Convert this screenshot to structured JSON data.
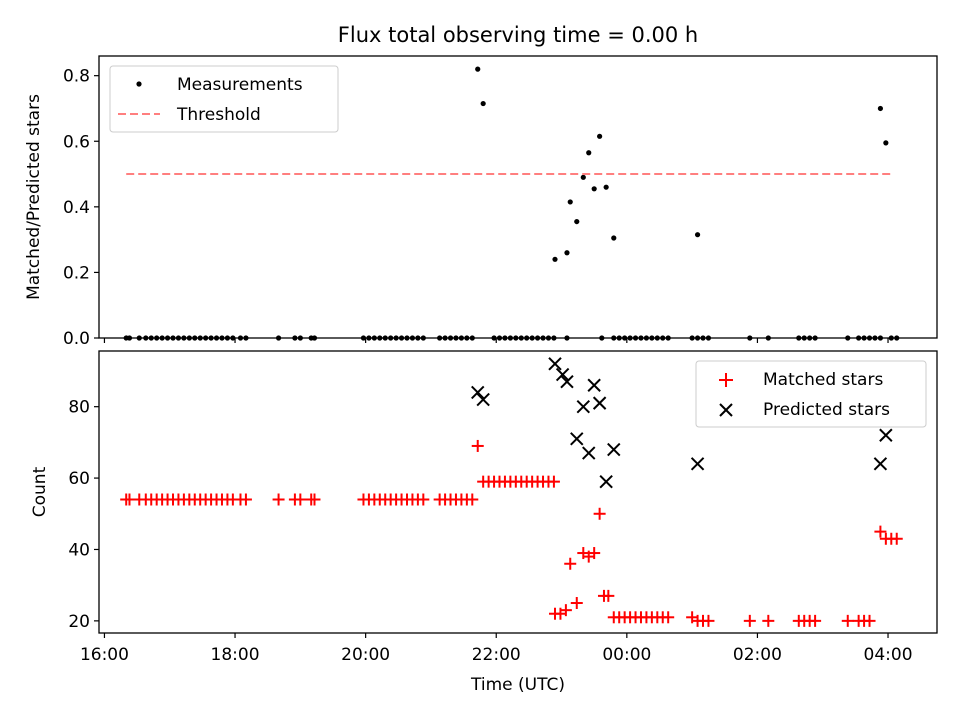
{
  "title": "Flux total observing time = 0.00 h",
  "chart_data": [
    {
      "type": "scatter",
      "ylabel": "Matched/Predicted stars",
      "xlabel": "",
      "xlim": [
        "15:55",
        "28:45"
      ],
      "ylim": [
        0,
        0.86
      ],
      "yticks": [
        0.0,
        0.2,
        0.4,
        0.6,
        0.8
      ],
      "ytick_labels": [
        "0.0",
        "0.2",
        "0.4",
        "0.6",
        "0.8"
      ],
      "legend": {
        "position": "top-left",
        "items": [
          "Measurements",
          "Threshold"
        ]
      },
      "series": [
        {
          "name": "Measurements",
          "color": "#000000",
          "marker": "dot",
          "points": [
            [
              "16:20",
              0
            ],
            [
              "16:23",
              0
            ],
            [
              "16:32",
              0
            ],
            [
              "16:38",
              0
            ],
            [
              "16:43",
              0
            ],
            [
              "16:48",
              0
            ],
            [
              "16:53",
              0
            ],
            [
              "16:58",
              0
            ],
            [
              "17:03",
              0
            ],
            [
              "17:08",
              0
            ],
            [
              "17:13",
              0
            ],
            [
              "17:18",
              0
            ],
            [
              "17:23",
              0
            ],
            [
              "17:28",
              0
            ],
            [
              "17:33",
              0
            ],
            [
              "17:38",
              0
            ],
            [
              "17:43",
              0
            ],
            [
              "17:48",
              0
            ],
            [
              "17:53",
              0
            ],
            [
              "17:58",
              0
            ],
            [
              "18:05",
              0
            ],
            [
              "18:10",
              0
            ],
            [
              "18:40",
              0
            ],
            [
              "18:55",
              0
            ],
            [
              "19:00",
              0
            ],
            [
              "19:10",
              0
            ],
            [
              "19:13",
              0
            ],
            [
              "19:58",
              0
            ],
            [
              "20:03",
              0
            ],
            [
              "20:08",
              0
            ],
            [
              "20:13",
              0
            ],
            [
              "20:18",
              0
            ],
            [
              "20:23",
              0
            ],
            [
              "20:28",
              0
            ],
            [
              "20:33",
              0
            ],
            [
              "20:38",
              0
            ],
            [
              "20:43",
              0
            ],
            [
              "20:48",
              0
            ],
            [
              "20:53",
              0
            ],
            [
              "21:08",
              0
            ],
            [
              "21:13",
              0
            ],
            [
              "21:18",
              0
            ],
            [
              "21:23",
              0
            ],
            [
              "21:28",
              0
            ],
            [
              "21:33",
              0
            ],
            [
              "21:38",
              0
            ],
            [
              "21:43",
              0.82
            ],
            [
              "21:48",
              0.715
            ],
            [
              "21:58",
              0
            ],
            [
              "22:03",
              0
            ],
            [
              "22:08",
              0
            ],
            [
              "22:13",
              0
            ],
            [
              "22:18",
              0
            ],
            [
              "22:23",
              0
            ],
            [
              "22:28",
              0
            ],
            [
              "22:33",
              0
            ],
            [
              "22:38",
              0
            ],
            [
              "22:43",
              0
            ],
            [
              "22:48",
              0
            ],
            [
              "22:53",
              0
            ],
            [
              "23:05",
              0
            ],
            [
              "22:54",
              0.24
            ],
            [
              "23:05",
              0.26
            ],
            [
              "23:08",
              0.415
            ],
            [
              "23:14",
              0.355
            ],
            [
              "23:20",
              0.49
            ],
            [
              "23:25",
              0.565
            ],
            [
              "23:30",
              0.455
            ],
            [
              "23:35",
              0.615
            ],
            [
              "23:41",
              0.46
            ],
            [
              "23:48",
              0.305
            ],
            [
              "23:37",
              0
            ],
            [
              "23:48",
              0
            ],
            [
              "23:53",
              0
            ],
            [
              "23:58",
              0
            ],
            [
              "24:03",
              0
            ],
            [
              "24:08",
              0
            ],
            [
              "24:13",
              0
            ],
            [
              "24:18",
              0
            ],
            [
              "24:23",
              0
            ],
            [
              "24:28",
              0
            ],
            [
              "24:33",
              0
            ],
            [
              "24:38",
              0
            ],
            [
              "25:00",
              0
            ],
            [
              "25:05",
              0
            ],
            [
              "25:10",
              0
            ],
            [
              "25:15",
              0
            ],
            [
              "25:05",
              0.315
            ],
            [
              "25:53",
              0
            ],
            [
              "26:10",
              0
            ],
            [
              "26:38",
              0
            ],
            [
              "26:43",
              0
            ],
            [
              "26:48",
              0
            ],
            [
              "26:53",
              0
            ],
            [
              "27:23",
              0
            ],
            [
              "27:33",
              0
            ],
            [
              "27:38",
              0
            ],
            [
              "27:43",
              0
            ],
            [
              "27:48",
              0
            ],
            [
              "27:53",
              0
            ],
            [
              "28:03",
              0
            ],
            [
              "28:08",
              0
            ],
            [
              "27:53",
              0.7
            ],
            [
              "27:58",
              0.595
            ]
          ]
        },
        {
          "name": "Threshold",
          "color": "#ff7f7f",
          "style": "dashed",
          "points": [
            [
              "16:20",
              0.5
            ],
            [
              "28:05",
              0.5
            ]
          ]
        }
      ]
    },
    {
      "type": "scatter",
      "ylabel": "Count",
      "xlabel": "Time (UTC)",
      "xlim": [
        "15:55",
        "28:45"
      ],
      "ylim": [
        16.6,
        95.6
      ],
      "yticks": [
        20,
        40,
        60,
        80
      ],
      "ytick_labels": [
        "20",
        "40",
        "60",
        "80"
      ],
      "xticks": [
        "16:00",
        "18:00",
        "20:00",
        "22:00",
        "24:00",
        "26:00",
        "28:00"
      ],
      "xtick_labels": [
        "16:00",
        "18:00",
        "20:00",
        "22:00",
        "00:00",
        "02:00",
        "04:00"
      ],
      "legend": {
        "position": "top-right",
        "items": [
          "Matched stars",
          "Predicted stars"
        ]
      },
      "series": [
        {
          "name": "Matched stars",
          "color": "#ff0000",
          "marker": "plus",
          "points": [
            [
              "16:20",
              54
            ],
            [
              "16:23",
              54
            ],
            [
              "16:32",
              54
            ],
            [
              "16:38",
              54
            ],
            [
              "16:43",
              54
            ],
            [
              "16:48",
              54
            ],
            [
              "16:53",
              54
            ],
            [
              "16:58",
              54
            ],
            [
              "17:03",
              54
            ],
            [
              "17:08",
              54
            ],
            [
              "17:13",
              54
            ],
            [
              "17:18",
              54
            ],
            [
              "17:23",
              54
            ],
            [
              "17:28",
              54
            ],
            [
              "17:33",
              54
            ],
            [
              "17:38",
              54
            ],
            [
              "17:43",
              54
            ],
            [
              "17:48",
              54
            ],
            [
              "17:53",
              54
            ],
            [
              "17:58",
              54
            ],
            [
              "18:05",
              54
            ],
            [
              "18:10",
              54
            ],
            [
              "18:40",
              54
            ],
            [
              "18:55",
              54
            ],
            [
              "19:00",
              54
            ],
            [
              "19:10",
              54
            ],
            [
              "19:13",
              54
            ],
            [
              "19:58",
              54
            ],
            [
              "20:03",
              54
            ],
            [
              "20:08",
              54
            ],
            [
              "20:13",
              54
            ],
            [
              "20:18",
              54
            ],
            [
              "20:23",
              54
            ],
            [
              "20:28",
              54
            ],
            [
              "20:33",
              54
            ],
            [
              "20:38",
              54
            ],
            [
              "20:43",
              54
            ],
            [
              "20:48",
              54
            ],
            [
              "20:53",
              54
            ],
            [
              "21:08",
              54
            ],
            [
              "21:13",
              54
            ],
            [
              "21:18",
              54
            ],
            [
              "21:23",
              54
            ],
            [
              "21:28",
              54
            ],
            [
              "21:33",
              54
            ],
            [
              "21:38",
              54
            ],
            [
              "21:43",
              69
            ],
            [
              "21:48",
              59
            ],
            [
              "21:53",
              59
            ],
            [
              "21:58",
              59
            ],
            [
              "22:03",
              59
            ],
            [
              "22:08",
              59
            ],
            [
              "22:13",
              59
            ],
            [
              "22:18",
              59
            ],
            [
              "22:23",
              59
            ],
            [
              "22:28",
              59
            ],
            [
              "22:33",
              59
            ],
            [
              "22:38",
              59
            ],
            [
              "22:43",
              59
            ],
            [
              "22:48",
              59
            ],
            [
              "22:53",
              59
            ],
            [
              "22:54",
              22
            ],
            [
              "22:59",
              22
            ],
            [
              "23:04",
              23
            ],
            [
              "23:08",
              36
            ],
            [
              "23:14",
              25
            ],
            [
              "23:20",
              39
            ],
            [
              "23:25",
              38
            ],
            [
              "23:30",
              39
            ],
            [
              "23:35",
              50
            ],
            [
              "23:39",
              27
            ],
            [
              "23:43",
              27
            ],
            [
              "23:48",
              21
            ],
            [
              "23:53",
              21
            ],
            [
              "23:58",
              21
            ],
            [
              "24:03",
              21
            ],
            [
              "24:08",
              21
            ],
            [
              "24:13",
              21
            ],
            [
              "24:18",
              21
            ],
            [
              "24:23",
              21
            ],
            [
              "24:28",
              21
            ],
            [
              "24:33",
              21
            ],
            [
              "24:38",
              21
            ],
            [
              "25:00",
              21
            ],
            [
              "25:05",
              20
            ],
            [
              "25:10",
              20
            ],
            [
              "25:15",
              20
            ],
            [
              "25:53",
              20
            ],
            [
              "26:10",
              20
            ],
            [
              "26:38",
              20
            ],
            [
              "26:43",
              20
            ],
            [
              "26:48",
              20
            ],
            [
              "26:53",
              20
            ],
            [
              "27:23",
              20
            ],
            [
              "27:33",
              20
            ],
            [
              "27:38",
              20
            ],
            [
              "27:43",
              20
            ],
            [
              "27:53",
              45
            ],
            [
              "27:58",
              43
            ],
            [
              "28:03",
              43
            ],
            [
              "28:08",
              43
            ]
          ]
        },
        {
          "name": "Predicted stars",
          "color": "#000000",
          "marker": "x",
          "points": [
            [
              "21:43",
              84
            ],
            [
              "21:48",
              82
            ],
            [
              "22:54",
              92
            ],
            [
              "23:01",
              89
            ],
            [
              "23:05",
              87
            ],
            [
              "23:14",
              71
            ],
            [
              "23:20",
              80
            ],
            [
              "23:25",
              67
            ],
            [
              "23:30",
              86
            ],
            [
              "23:35",
              81
            ],
            [
              "23:41",
              59
            ],
            [
              "23:48",
              68
            ],
            [
              "25:05",
              64
            ],
            [
              "27:53",
              64
            ],
            [
              "27:58",
              72
            ]
          ]
        }
      ]
    }
  ]
}
